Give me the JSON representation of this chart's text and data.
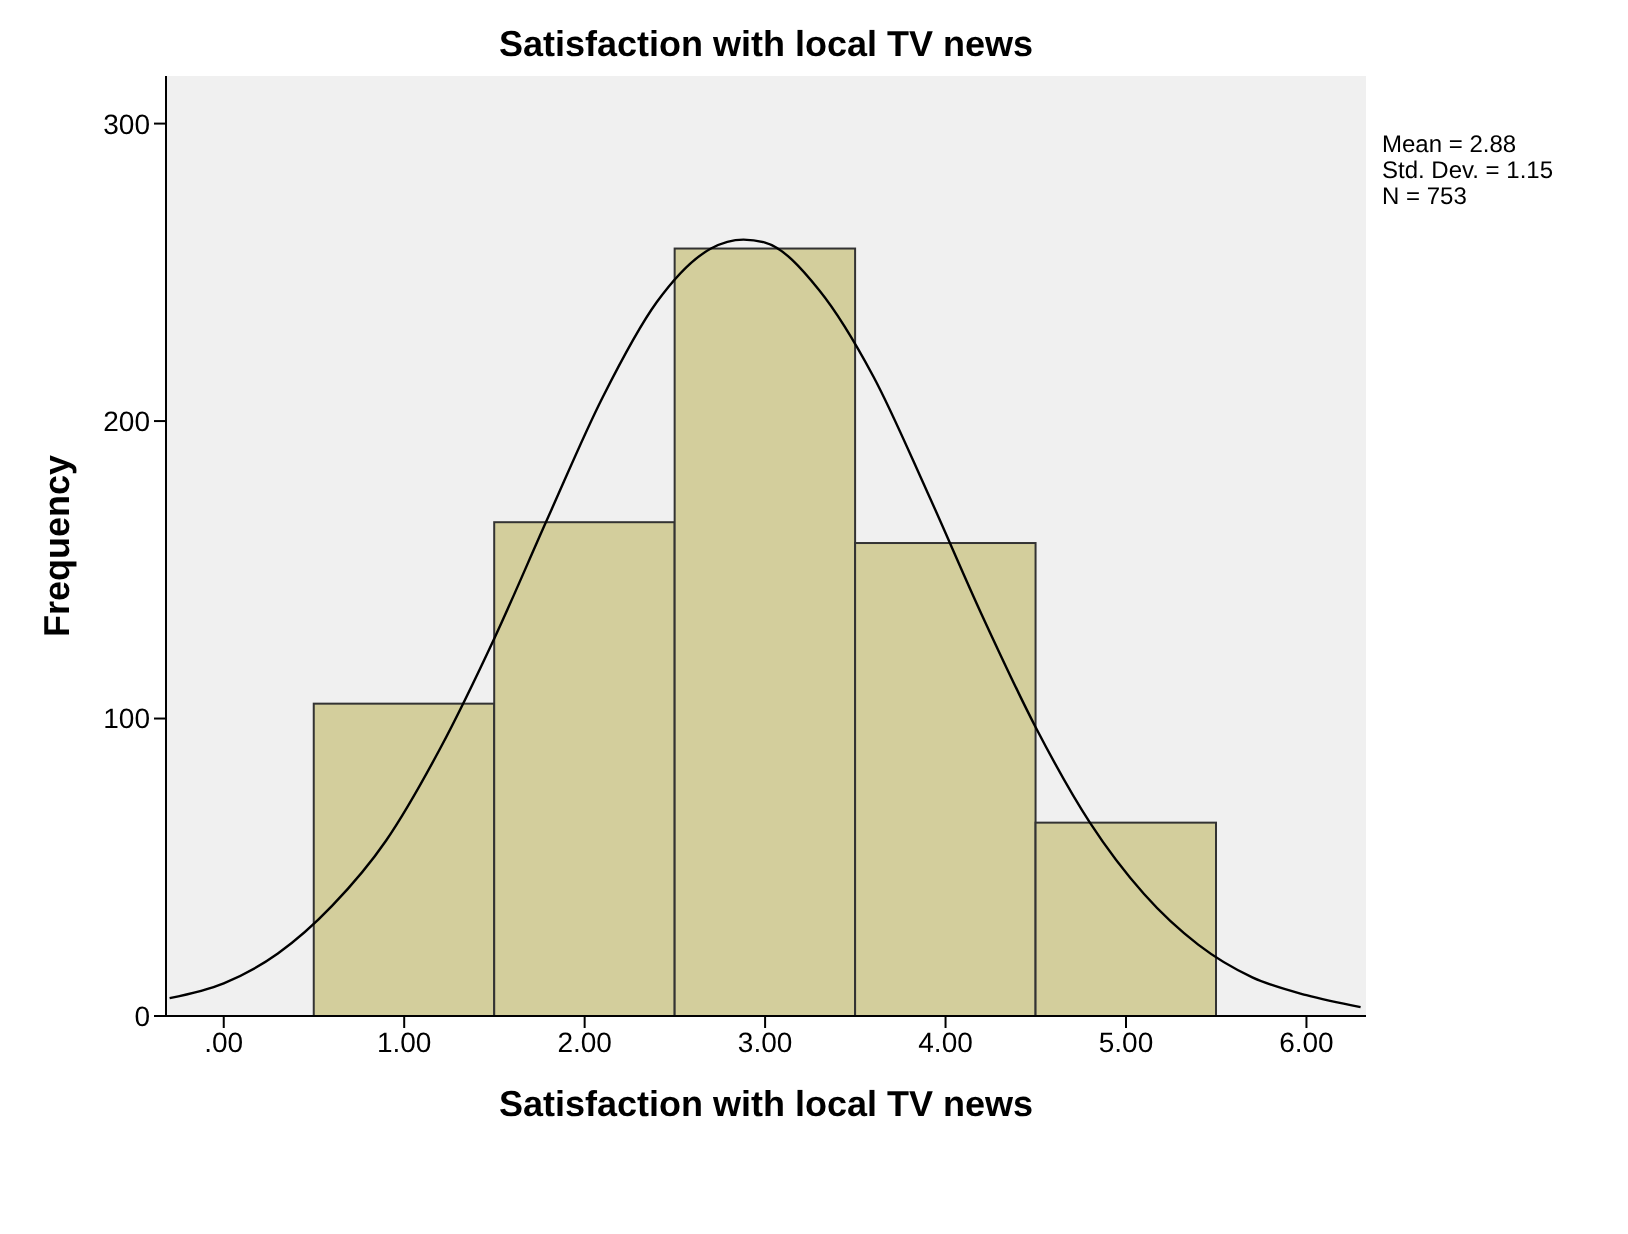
{
  "chart_data": {
    "type": "histogram",
    "title": "Satisfaction with local TV news",
    "xlabel": "Satisfaction with local TV news",
    "ylabel": "Frequency",
    "bins": [
      0.5,
      1.5,
      2.5,
      3.5,
      4.5,
      5.5
    ],
    "series": [
      {
        "color": "#d3ce9c",
        "values": [
          105,
          166,
          258,
          159,
          65
        ]
      },
      {
        "type": "line",
        "color": "#000000",
        "x": [
          -0.3,
          0,
          0.3,
          0.6,
          0.9,
          1.2,
          1.5,
          1.8,
          2.1,
          2.4,
          2.7,
          2.88,
          3.0,
          3.3,
          3.6,
          3.9,
          4.2,
          4.5,
          4.8,
          5.1,
          5.4,
          5.7,
          6.0,
          6.3
        ],
        "values": [
          6,
          11,
          21,
          37,
          59,
          90,
          127,
          168,
          208,
          240,
          258,
          261,
          260,
          244,
          215,
          176,
          135,
          97,
          65,
          41,
          24,
          13,
          7,
          3
        ]
      }
    ],
    "xlim": [
      -0.32,
      6.33
    ],
    "xticks": [
      {
        "value": 0,
        "label": ".00"
      },
      {
        "value": 1,
        "label": "1.00"
      },
      {
        "value": 2,
        "label": "2.00"
      },
      {
        "value": 3,
        "label": "3.00"
      },
      {
        "value": 4,
        "label": "4.00"
      },
      {
        "value": 5,
        "label": "5.00"
      },
      {
        "value": 6,
        "label": "6.00"
      }
    ],
    "ylim": [
      0,
      316
    ],
    "yticks": [
      0,
      100,
      200,
      300
    ],
    "annotations": [
      "Mean = 2.88",
      "Std. Dev. = 1.15",
      "N = 753"
    ],
    "marker": "none",
    "grid": false,
    "legend": false
  }
}
